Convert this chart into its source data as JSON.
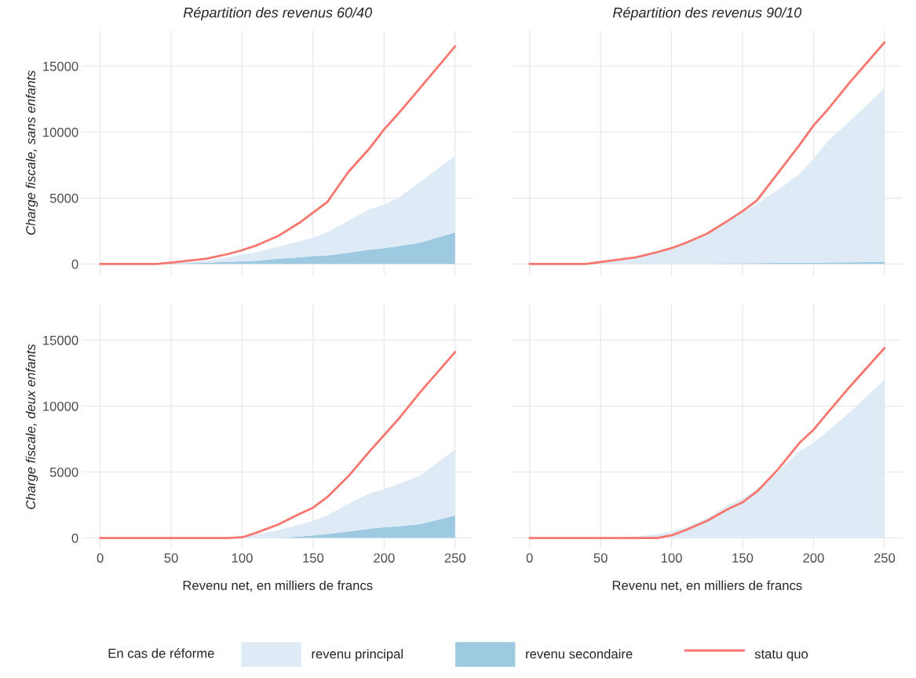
{
  "chart_data": [
    {
      "type": "area",
      "stacked": true,
      "title": "Répartition des revenus 60/40",
      "ylabel": "Charge fiscale, sans enfants",
      "x": [
        0,
        40,
        50,
        75,
        90,
        100,
        110,
        125,
        140,
        150,
        160,
        175,
        190,
        200,
        210,
        225,
        250
      ],
      "xlim": [
        -12.5,
        262.5
      ],
      "xticks": [
        0,
        50,
        100,
        150,
        200,
        250
      ],
      "ylim": [
        -850,
        17700
      ],
      "yticks": [
        0,
        5000,
        10000,
        15000
      ],
      "tick_labels": "y",
      "grid": true,
      "legend": "bottom",
      "legend_title": "En cas de réforme",
      "series": [
        {
          "name": "revenu secondaire",
          "color": "#9ecae1",
          "values": [
            0,
            0,
            30,
            100,
            170,
            200,
            250,
            400,
            500,
            600,
            650,
            850,
            1100,
            1200,
            1350,
            1600,
            2400
          ]
        },
        {
          "name": "revenu principal",
          "color": "#deebf7",
          "values": [
            0,
            0,
            50,
            150,
            350,
            500,
            650,
            900,
            1200,
            1400,
            1750,
            2450,
            3050,
            3300,
            3650,
            4600,
            5800
          ]
        },
        {
          "name": "statu quo",
          "type": "line",
          "color": "#f8766d",
          "values": [
            0,
            0,
            100,
            400,
            750,
            1050,
            1400,
            2100,
            3100,
            3900,
            4700,
            7000,
            8800,
            10200,
            11400,
            13300,
            16500
          ]
        }
      ]
    },
    {
      "type": "area",
      "stacked": true,
      "title": "Répartition des revenus 90/10",
      "x": [
        0,
        40,
        50,
        75,
        90,
        100,
        110,
        125,
        140,
        150,
        160,
        175,
        190,
        200,
        210,
        225,
        250
      ],
      "xlim": [
        -12.5,
        262.5
      ],
      "xticks": [
        0,
        50,
        100,
        150,
        200,
        250
      ],
      "ylim": [
        -850,
        17700
      ],
      "yticks": [
        0,
        5000,
        10000,
        15000
      ],
      "tick_labels": false,
      "grid": true,
      "series": [
        {
          "color": "#9ecae1",
          "values": [
            0,
            0,
            0,
            0,
            0,
            0,
            0,
            0,
            50,
            50,
            60,
            80,
            100,
            100,
            110,
            120,
            150
          ]
        },
        {
          "color": "#deebf7",
          "values": [
            0,
            0,
            150,
            500,
            900,
            1200,
            1550,
            2200,
            3200,
            3850,
            4500,
            5550,
            6700,
            7900,
            9200,
            10650,
            13150
          ]
        },
        {
          "type": "line",
          "color": "#f8766d",
          "values": [
            0,
            0,
            150,
            500,
            900,
            1200,
            1600,
            2300,
            3300,
            4000,
            4800,
            6900,
            9000,
            10500,
            11700,
            13700,
            16800
          ]
        }
      ]
    },
    {
      "type": "area",
      "stacked": true,
      "ylabel": "Charge fiscale, deux enfants",
      "xlabel": "Revenu net, en milliers de francs",
      "x": [
        0,
        40,
        50,
        75,
        90,
        100,
        110,
        125,
        140,
        150,
        160,
        175,
        190,
        200,
        210,
        225,
        250
      ],
      "xlim": [
        -12.5,
        262.5
      ],
      "xticks": [
        0,
        50,
        100,
        150,
        200,
        250
      ],
      "ylim": [
        -850,
        17700
      ],
      "yticks": [
        0,
        5000,
        10000,
        15000
      ],
      "grid": true,
      "series": [
        {
          "color": "#9ecae1",
          "values": [
            0,
            0,
            0,
            0,
            0,
            0,
            0,
            0,
            100,
            200,
            300,
            500,
            700,
            800,
            900,
            1050,
            1700
          ]
        },
        {
          "color": "#deebf7",
          "values": [
            0,
            0,
            0,
            0,
            0,
            0,
            250,
            600,
            900,
            1100,
            1400,
            2100,
            2700,
            2900,
            3200,
            3650,
            5000
          ]
        },
        {
          "type": "line",
          "color": "#f8766d",
          "values": [
            0,
            0,
            0,
            0,
            0,
            50,
            400,
            1000,
            1800,
            2300,
            3100,
            4700,
            6600,
            7800,
            9000,
            11000,
            14100
          ]
        }
      ]
    },
    {
      "type": "area",
      "stacked": true,
      "xlabel": "Revenu net, en milliers de francs",
      "x": [
        0,
        40,
        50,
        75,
        90,
        100,
        110,
        125,
        140,
        150,
        160,
        175,
        190,
        200,
        210,
        225,
        250
      ],
      "xlim": [
        -12.5,
        262.5
      ],
      "xticks": [
        0,
        50,
        100,
        150,
        200,
        250
      ],
      "ylim": [
        -850,
        17700
      ],
      "yticks": [
        0,
        5000,
        10000,
        15000
      ],
      "tick_labels": "x",
      "grid": true,
      "series": [
        {
          "color": "#deebf7",
          "values": [
            0,
            0,
            0,
            100,
            300,
            500,
            800,
            1500,
            2500,
            3000,
            3700,
            5000,
            6600,
            7200,
            8100,
            9500,
            12000
          ]
        },
        {
          "type": "line",
          "color": "#f8766d",
          "values": [
            0,
            0,
            0,
            0,
            0,
            200,
            600,
            1300,
            2200,
            2700,
            3500,
            5200,
            7200,
            8200,
            9500,
            11400,
            14400
          ]
        }
      ]
    }
  ]
}
